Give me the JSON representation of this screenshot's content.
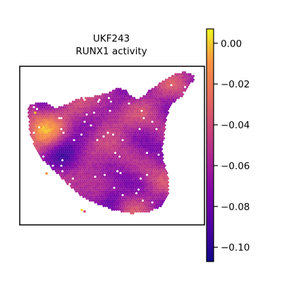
{
  "chart_data": {
    "type": "heatmap",
    "title": "UKF243",
    "subtitle": "RUNX1 activity",
    "colormap": "plasma",
    "colorbar": {
      "min": -0.107,
      "max": 0.007,
      "ticks": [
        0.0,
        -0.02,
        -0.04,
        -0.06,
        -0.08,
        -0.1
      ],
      "tick_labels": [
        "0.00",
        "−0.02",
        "−0.04",
        "−0.06",
        "−0.08",
        "−0.10"
      ]
    },
    "grid": false,
    "legend_position": "right",
    "spots_description": "spatial transcriptomics spots, RUNX1 activity per spot"
  }
}
